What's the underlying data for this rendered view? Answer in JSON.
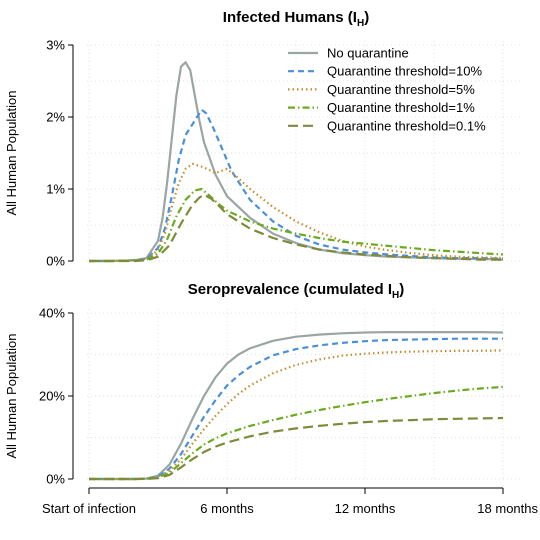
{
  "chart_data": [
    {
      "type": "line",
      "title_main": "Infected Humans (I",
      "title_sub": "H",
      "title_end": ")",
      "ylabel": "All Human Population",
      "ylim": [
        0,
        3
      ],
      "yticks": [
        0,
        1,
        2,
        3
      ],
      "ytick_labels": [
        "0%",
        "1%",
        "2%",
        "3%"
      ],
      "xlim": [
        0,
        18
      ],
      "grid": true,
      "legend": "top-right",
      "series": [
        {
          "name": "No quarantine",
          "color": "#9aa5a4",
          "dash": "none",
          "x": [
            0,
            1,
            2,
            2.5,
            3,
            3.2,
            3.4,
            3.6,
            3.8,
            4.0,
            4.2,
            4.4,
            4.6,
            4.8,
            5,
            5.5,
            6,
            7,
            8,
            9,
            10,
            11,
            12,
            13,
            14,
            15,
            16,
            17,
            18
          ],
          "y": [
            0,
            0,
            0.01,
            0.04,
            0.28,
            0.6,
            1.1,
            1.7,
            2.3,
            2.7,
            2.76,
            2.65,
            2.3,
            1.95,
            1.65,
            1.2,
            0.9,
            0.6,
            0.38,
            0.25,
            0.16,
            0.11,
            0.08,
            0.06,
            0.05,
            0.04,
            0.03,
            0.03,
            0.02
          ]
        },
        {
          "name": "Quarantine threshold=10%",
          "color": "#4a90d9",
          "dash": "6 4",
          "x": [
            0,
            1,
            2,
            2.5,
            3,
            3.3,
            3.6,
            3.9,
            4.2,
            4.5,
            4.7,
            4.9,
            5.1,
            5.4,
            5.8,
            6.2,
            7,
            8,
            9,
            10,
            11,
            12,
            13,
            14,
            15,
            16,
            17,
            18
          ],
          "y": [
            0,
            0,
            0.01,
            0.03,
            0.18,
            0.45,
            0.9,
            1.4,
            1.75,
            1.9,
            2.0,
            2.1,
            2.05,
            1.85,
            1.55,
            1.25,
            0.85,
            0.55,
            0.35,
            0.23,
            0.16,
            0.12,
            0.09,
            0.07,
            0.05,
            0.04,
            0.04,
            0.03
          ]
        },
        {
          "name": "Quarantine threshold=5%",
          "color": "#c68a2e",
          "dash": "1.5 3",
          "x": [
            0,
            1,
            2,
            2.5,
            3,
            3.3,
            3.6,
            3.9,
            4.2,
            4.5,
            5,
            5.5,
            6,
            6.5,
            7,
            8,
            9,
            10,
            11,
            12,
            13,
            14,
            15,
            16,
            17,
            18
          ],
          "y": [
            0,
            0,
            0.01,
            0.03,
            0.15,
            0.38,
            0.75,
            1.08,
            1.28,
            1.35,
            1.3,
            1.22,
            1.28,
            1.15,
            1.0,
            0.75,
            0.55,
            0.4,
            0.28,
            0.2,
            0.15,
            0.11,
            0.08,
            0.06,
            0.05,
            0.04
          ]
        },
        {
          "name": "Quarantine threshold=1%",
          "color": "#6aaa1f",
          "dash": "7 3 1.5 3",
          "x": [
            0,
            1,
            2,
            2.5,
            3,
            3.4,
            3.8,
            4.2,
            4.6,
            4.9,
            5.2,
            5.6,
            6,
            7,
            8,
            9,
            10,
            11,
            12,
            13,
            14,
            15,
            16,
            17,
            18
          ],
          "y": [
            0,
            0,
            0.01,
            0.02,
            0.1,
            0.3,
            0.62,
            0.85,
            0.98,
            1.0,
            0.92,
            0.8,
            0.7,
            0.55,
            0.45,
            0.38,
            0.32,
            0.27,
            0.24,
            0.21,
            0.18,
            0.15,
            0.13,
            0.11,
            0.09
          ]
        },
        {
          "name": "Quarantine threshold=0.1%",
          "color": "#7f8a3a",
          "dash": "10 5",
          "x": [
            0,
            1,
            2,
            2.5,
            3,
            3.5,
            4,
            4.5,
            4.8,
            5.0,
            5.3,
            5.7,
            6,
            7,
            8,
            9,
            10,
            11,
            12,
            13,
            14,
            15,
            16,
            17,
            18
          ],
          "y": [
            0,
            0,
            0,
            0.01,
            0.06,
            0.22,
            0.52,
            0.78,
            0.88,
            0.92,
            0.87,
            0.75,
            0.65,
            0.45,
            0.32,
            0.23,
            0.16,
            0.12,
            0.09,
            0.07,
            0.05,
            0.04,
            0.03,
            0.02,
            0.02
          ]
        }
      ]
    },
    {
      "type": "line",
      "title_main": "Seroprevalence (cumulated I",
      "title_sub": "H",
      "title_end": ")",
      "ylabel": "All Human Population",
      "ylim": [
        0,
        40
      ],
      "yticks": [
        0,
        20,
        40
      ],
      "ytick_labels": [
        "0%",
        "20%",
        "40%"
      ],
      "xlim": [
        0,
        18
      ],
      "xticks": [
        0,
        6,
        12,
        18
      ],
      "xtick_labels": [
        "Start of infection",
        "6 months",
        "12 months",
        "18 months"
      ],
      "grid": true,
      "series": [
        {
          "name": "No quarantine",
          "color": "#9aa5a4",
          "dash": "none",
          "x": [
            0,
            1,
            2,
            2.5,
            3,
            3.5,
            4,
            4.5,
            5,
            5.5,
            6,
            6.5,
            7,
            8,
            9,
            10,
            11,
            12,
            13,
            14,
            15,
            16,
            17,
            18
          ],
          "y": [
            0,
            0,
            0,
            0.1,
            0.8,
            3.5,
            8.5,
            14.5,
            20,
            24.5,
            27.8,
            30,
            31.5,
            33.3,
            34.3,
            34.8,
            35.1,
            35.3,
            35.4,
            35.4,
            35.4,
            35.4,
            35.4,
            35.3
          ]
        },
        {
          "name": "Quarantine threshold=10%",
          "color": "#4a90d9",
          "dash": "6 4",
          "x": [
            0,
            1,
            2,
            2.5,
            3,
            3.5,
            4,
            4.5,
            5,
            5.5,
            6,
            6.5,
            7,
            8,
            9,
            10,
            11,
            12,
            13,
            14,
            15,
            16,
            17,
            18
          ],
          "y": [
            0,
            0,
            0,
            0.1,
            0.6,
            2.5,
            6.0,
            10.5,
            15.0,
            19.0,
            22.5,
            25.0,
            27.0,
            29.8,
            31.3,
            32.2,
            32.8,
            33.2,
            33.5,
            33.6,
            33.7,
            33.8,
            33.8,
            33.8
          ]
        },
        {
          "name": "Quarantine threshold=5%",
          "color": "#c68a2e",
          "dash": "1.5 3",
          "x": [
            0,
            1,
            2,
            2.5,
            3,
            3.5,
            4,
            4.5,
            5,
            5.5,
            6,
            6.5,
            7,
            8,
            9,
            10,
            11,
            12,
            13,
            14,
            15,
            16,
            17,
            18
          ],
          "y": [
            0,
            0,
            0,
            0.1,
            0.5,
            2.0,
            4.8,
            8.5,
            12.0,
            15.2,
            18.0,
            20.5,
            22.5,
            25.5,
            27.5,
            28.8,
            29.7,
            30.2,
            30.5,
            30.7,
            30.8,
            30.9,
            30.9,
            31.0
          ]
        },
        {
          "name": "Quarantine threshold=1%",
          "color": "#6aaa1f",
          "dash": "7 3 1.5 3",
          "x": [
            0,
            1,
            2,
            2.5,
            3,
            3.5,
            4,
            4.5,
            5,
            5.5,
            6,
            7,
            8,
            9,
            10,
            11,
            12,
            13,
            14,
            15,
            16,
            17,
            18
          ],
          "y": [
            0,
            0,
            0,
            0.05,
            0.4,
            1.5,
            3.8,
            6.2,
            8.3,
            9.8,
            11.0,
            12.8,
            14.2,
            15.5,
            16.6,
            17.6,
            18.5,
            19.3,
            20.0,
            20.7,
            21.3,
            21.8,
            22.2
          ]
        },
        {
          "name": "Quarantine threshold=0.1%",
          "color": "#7f8a3a",
          "dash": "10 5",
          "x": [
            0,
            1,
            2,
            2.5,
            3,
            3.5,
            4,
            4.5,
            5,
            5.5,
            6,
            7,
            8,
            9,
            10,
            11,
            12,
            13,
            14,
            15,
            16,
            17,
            18
          ],
          "y": [
            0,
            0,
            0,
            0.02,
            0.2,
            1.0,
            2.8,
            4.8,
            6.5,
            7.8,
            8.8,
            10.3,
            11.4,
            12.2,
            12.8,
            13.3,
            13.7,
            14.0,
            14.2,
            14.4,
            14.5,
            14.6,
            14.7
          ]
        }
      ]
    }
  ]
}
